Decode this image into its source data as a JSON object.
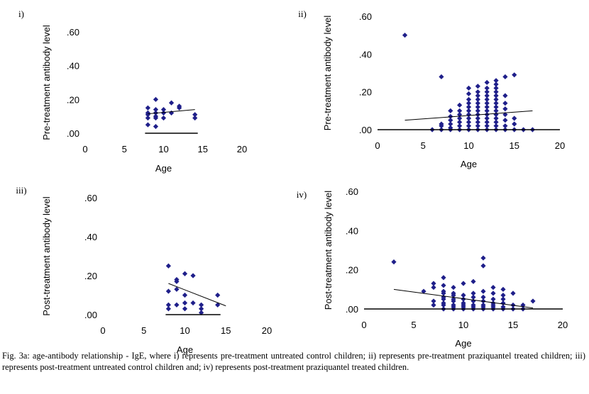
{
  "caption": "Fig. 3a: age-antibody relationship - IgE, where i) represents pre-treatment untreated control children; ii) represents pre-treatment praziquantel treated children; iii) represents post-treatment untreated control children and; iv) represents post-treatment praziquantel treated children.",
  "colors": {
    "marker": "#1f1f8a",
    "line": "#000000"
  },
  "chart_data": [
    {
      "panel_label": "i)",
      "type": "scatter",
      "xlabel": "Age",
      "ylabel": "Pre-treatment antibody level",
      "xlim": [
        0,
        20
      ],
      "ylim": [
        0,
        0.6
      ],
      "x_ticks": [
        "0",
        "5",
        "10",
        "15",
        "20"
      ],
      "y_ticks": [
        ".00",
        ".20",
        ".40",
        ".60"
      ],
      "points": [
        {
          "x": 8,
          "y": 0.05
        },
        {
          "x": 8,
          "y": 0.09
        },
        {
          "x": 8,
          "y": 0.11
        },
        {
          "x": 8,
          "y": 0.12
        },
        {
          "x": 8,
          "y": 0.15
        },
        {
          "x": 9,
          "y": 0.04
        },
        {
          "x": 9,
          "y": 0.09
        },
        {
          "x": 9,
          "y": 0.1
        },
        {
          "x": 9,
          "y": 0.12
        },
        {
          "x": 9,
          "y": 0.14
        },
        {
          "x": 9,
          "y": 0.2
        },
        {
          "x": 10,
          "y": 0.09
        },
        {
          "x": 10,
          "y": 0.12
        },
        {
          "x": 10,
          "y": 0.14
        },
        {
          "x": 11,
          "y": 0.12
        },
        {
          "x": 11,
          "y": 0.18
        },
        {
          "x": 12,
          "y": 0.15
        },
        {
          "x": 12,
          "y": 0.16
        },
        {
          "x": 14,
          "y": 0.09
        },
        {
          "x": 14,
          "y": 0.11
        }
      ],
      "trendline": [
        [
          8,
          0.115
        ],
        [
          14,
          0.14
        ]
      ]
    },
    {
      "panel_label": "ii)",
      "type": "scatter",
      "xlabel": "Age",
      "ylabel": "Pre-treatment antibody level",
      "xlim": [
        0,
        20
      ],
      "ylim": [
        0,
        0.6
      ],
      "x_ticks": [
        "0",
        "5",
        "10",
        "15",
        "20"
      ],
      "y_ticks": [
        ".00",
        ".20",
        ".40",
        ".60"
      ],
      "points": [
        {
          "x": 3,
          "y": 0.5
        },
        {
          "x": 6,
          "y": 0.0
        },
        {
          "x": 7,
          "y": 0.0
        },
        {
          "x": 7,
          "y": 0.02
        },
        {
          "x": 7,
          "y": 0.03
        },
        {
          "x": 7,
          "y": 0.28
        },
        {
          "x": 8,
          "y": 0.0
        },
        {
          "x": 8,
          "y": 0.01
        },
        {
          "x": 8,
          "y": 0.03
        },
        {
          "x": 8,
          "y": 0.05
        },
        {
          "x": 8,
          "y": 0.07
        },
        {
          "x": 8,
          "y": 0.1
        },
        {
          "x": 9,
          "y": 0.0
        },
        {
          "x": 9,
          "y": 0.02
        },
        {
          "x": 9,
          "y": 0.04
        },
        {
          "x": 9,
          "y": 0.06
        },
        {
          "x": 9,
          "y": 0.08
        },
        {
          "x": 9,
          "y": 0.1
        },
        {
          "x": 9,
          "y": 0.13
        },
        {
          "x": 10,
          "y": 0.0
        },
        {
          "x": 10,
          "y": 0.02
        },
        {
          "x": 10,
          "y": 0.04
        },
        {
          "x": 10,
          "y": 0.06
        },
        {
          "x": 10,
          "y": 0.08
        },
        {
          "x": 10,
          "y": 0.1
        },
        {
          "x": 10,
          "y": 0.12
        },
        {
          "x": 10,
          "y": 0.14
        },
        {
          "x": 10,
          "y": 0.16
        },
        {
          "x": 10,
          "y": 0.19
        },
        {
          "x": 10,
          "y": 0.22
        },
        {
          "x": 11,
          "y": 0.0
        },
        {
          "x": 11,
          "y": 0.02
        },
        {
          "x": 11,
          "y": 0.04
        },
        {
          "x": 11,
          "y": 0.06
        },
        {
          "x": 11,
          "y": 0.08
        },
        {
          "x": 11,
          "y": 0.1
        },
        {
          "x": 11,
          "y": 0.12
        },
        {
          "x": 11,
          "y": 0.14
        },
        {
          "x": 11,
          "y": 0.16
        },
        {
          "x": 11,
          "y": 0.18
        },
        {
          "x": 11,
          "y": 0.2
        },
        {
          "x": 11,
          "y": 0.23
        },
        {
          "x": 12,
          "y": 0.0
        },
        {
          "x": 12,
          "y": 0.02
        },
        {
          "x": 12,
          "y": 0.04
        },
        {
          "x": 12,
          "y": 0.06
        },
        {
          "x": 12,
          "y": 0.08
        },
        {
          "x": 12,
          "y": 0.1
        },
        {
          "x": 12,
          "y": 0.12
        },
        {
          "x": 12,
          "y": 0.14
        },
        {
          "x": 12,
          "y": 0.16
        },
        {
          "x": 12,
          "y": 0.18
        },
        {
          "x": 12,
          "y": 0.2
        },
        {
          "x": 12,
          "y": 0.22
        },
        {
          "x": 12,
          "y": 0.25
        },
        {
          "x": 13,
          "y": 0.0
        },
        {
          "x": 13,
          "y": 0.02
        },
        {
          "x": 13,
          "y": 0.04
        },
        {
          "x": 13,
          "y": 0.06
        },
        {
          "x": 13,
          "y": 0.08
        },
        {
          "x": 13,
          "y": 0.1
        },
        {
          "x": 13,
          "y": 0.12
        },
        {
          "x": 13,
          "y": 0.14
        },
        {
          "x": 13,
          "y": 0.16
        },
        {
          "x": 13,
          "y": 0.18
        },
        {
          "x": 13,
          "y": 0.2
        },
        {
          "x": 13,
          "y": 0.22
        },
        {
          "x": 13,
          "y": 0.24
        },
        {
          "x": 13,
          "y": 0.26
        },
        {
          "x": 14,
          "y": 0.0
        },
        {
          "x": 14,
          "y": 0.02
        },
        {
          "x": 14,
          "y": 0.05
        },
        {
          "x": 14,
          "y": 0.08
        },
        {
          "x": 14,
          "y": 0.11
        },
        {
          "x": 14,
          "y": 0.14
        },
        {
          "x": 14,
          "y": 0.18
        },
        {
          "x": 14,
          "y": 0.28
        },
        {
          "x": 15,
          "y": 0.0
        },
        {
          "x": 15,
          "y": 0.03
        },
        {
          "x": 15,
          "y": 0.06
        },
        {
          "x": 15,
          "y": 0.29
        },
        {
          "x": 16,
          "y": 0.0
        },
        {
          "x": 17,
          "y": 0.0
        }
      ],
      "trendline": [
        [
          3,
          0.05
        ],
        [
          17,
          0.1
        ]
      ]
    },
    {
      "panel_label": "iii)",
      "type": "scatter",
      "xlabel": "Age",
      "ylabel": "Post-treatment antibody level",
      "xlim": [
        0,
        20
      ],
      "ylim": [
        0,
        0.6
      ],
      "x_ticks": [
        "0",
        "5",
        "10",
        "15",
        "20"
      ],
      "y_ticks": [
        ".00",
        ".20",
        ".40",
        ".60"
      ],
      "points": [
        {
          "x": 8,
          "y": 0.03
        },
        {
          "x": 8,
          "y": 0.05
        },
        {
          "x": 8,
          "y": 0.12
        },
        {
          "x": 8,
          "y": 0.25
        },
        {
          "x": 9,
          "y": 0.05
        },
        {
          "x": 9,
          "y": 0.13
        },
        {
          "x": 9,
          "y": 0.17
        },
        {
          "x": 9,
          "y": 0.18
        },
        {
          "x": 10,
          "y": 0.03
        },
        {
          "x": 10,
          "y": 0.06
        },
        {
          "x": 10,
          "y": 0.1
        },
        {
          "x": 10,
          "y": 0.21
        },
        {
          "x": 11,
          "y": 0.06
        },
        {
          "x": 11,
          "y": 0.2
        },
        {
          "x": 12,
          "y": 0.01
        },
        {
          "x": 12,
          "y": 0.03
        },
        {
          "x": 12,
          "y": 0.05
        },
        {
          "x": 14,
          "y": 0.05
        },
        {
          "x": 14,
          "y": 0.1
        }
      ],
      "trendline": [
        [
          8,
          0.16
        ],
        [
          15,
          0.045
        ]
      ]
    },
    {
      "panel_label": "iv)",
      "type": "scatter",
      "xlabel": "Age",
      "ylabel": "Post-treatment antibody level",
      "xlim": [
        0,
        20
      ],
      "ylim": [
        0,
        0.6
      ],
      "x_ticks": [
        "0",
        "5",
        "10",
        "15",
        "20"
      ],
      "y_ticks": [
        ".00",
        ".20",
        ".40",
        ".60"
      ],
      "points": [
        {
          "x": 3,
          "y": 0.24
        },
        {
          "x": 6,
          "y": 0.09
        },
        {
          "x": 7,
          "y": 0.02
        },
        {
          "x": 7,
          "y": 0.04
        },
        {
          "x": 7,
          "y": 0.11
        },
        {
          "x": 7,
          "y": 0.13
        },
        {
          "x": 8,
          "y": 0.0
        },
        {
          "x": 8,
          "y": 0.02
        },
        {
          "x": 8,
          "y": 0.03
        },
        {
          "x": 8,
          "y": 0.05
        },
        {
          "x": 8,
          "y": 0.06
        },
        {
          "x": 8,
          "y": 0.08
        },
        {
          "x": 8,
          "y": 0.09
        },
        {
          "x": 8,
          "y": 0.12
        },
        {
          "x": 8,
          "y": 0.16
        },
        {
          "x": 9,
          "y": 0.0
        },
        {
          "x": 9,
          "y": 0.01
        },
        {
          "x": 9,
          "y": 0.02
        },
        {
          "x": 9,
          "y": 0.04
        },
        {
          "x": 9,
          "y": 0.05
        },
        {
          "x": 9,
          "y": 0.07
        },
        {
          "x": 9,
          "y": 0.08
        },
        {
          "x": 9,
          "y": 0.11
        },
        {
          "x": 10,
          "y": 0.0
        },
        {
          "x": 10,
          "y": 0.01
        },
        {
          "x": 10,
          "y": 0.02
        },
        {
          "x": 10,
          "y": 0.03
        },
        {
          "x": 10,
          "y": 0.05
        },
        {
          "x": 10,
          "y": 0.07
        },
        {
          "x": 10,
          "y": 0.13
        },
        {
          "x": 11,
          "y": 0.0
        },
        {
          "x": 11,
          "y": 0.01
        },
        {
          "x": 11,
          "y": 0.02
        },
        {
          "x": 11,
          "y": 0.04
        },
        {
          "x": 11,
          "y": 0.06
        },
        {
          "x": 11,
          "y": 0.08
        },
        {
          "x": 11,
          "y": 0.14
        },
        {
          "x": 12,
          "y": 0.0
        },
        {
          "x": 12,
          "y": 0.01
        },
        {
          "x": 12,
          "y": 0.02
        },
        {
          "x": 12,
          "y": 0.04
        },
        {
          "x": 12,
          "y": 0.06
        },
        {
          "x": 12,
          "y": 0.09
        },
        {
          "x": 12,
          "y": 0.22
        },
        {
          "x": 12,
          "y": 0.26
        },
        {
          "x": 13,
          "y": 0.0
        },
        {
          "x": 13,
          "y": 0.01
        },
        {
          "x": 13,
          "y": 0.02
        },
        {
          "x": 13,
          "y": 0.03
        },
        {
          "x": 13,
          "y": 0.05
        },
        {
          "x": 13,
          "y": 0.08
        },
        {
          "x": 13,
          "y": 0.11
        },
        {
          "x": 14,
          "y": 0.0
        },
        {
          "x": 14,
          "y": 0.01
        },
        {
          "x": 14,
          "y": 0.03
        },
        {
          "x": 14,
          "y": 0.05
        },
        {
          "x": 14,
          "y": 0.07
        },
        {
          "x": 14,
          "y": 0.1
        },
        {
          "x": 15,
          "y": 0.0
        },
        {
          "x": 15,
          "y": 0.02
        },
        {
          "x": 15,
          "y": 0.08
        },
        {
          "x": 16,
          "y": 0.0
        },
        {
          "x": 16,
          "y": 0.02
        },
        {
          "x": 17,
          "y": 0.04
        }
      ],
      "trendline": [
        [
          3,
          0.1
        ],
        [
          17,
          0.005
        ]
      ]
    }
  ]
}
